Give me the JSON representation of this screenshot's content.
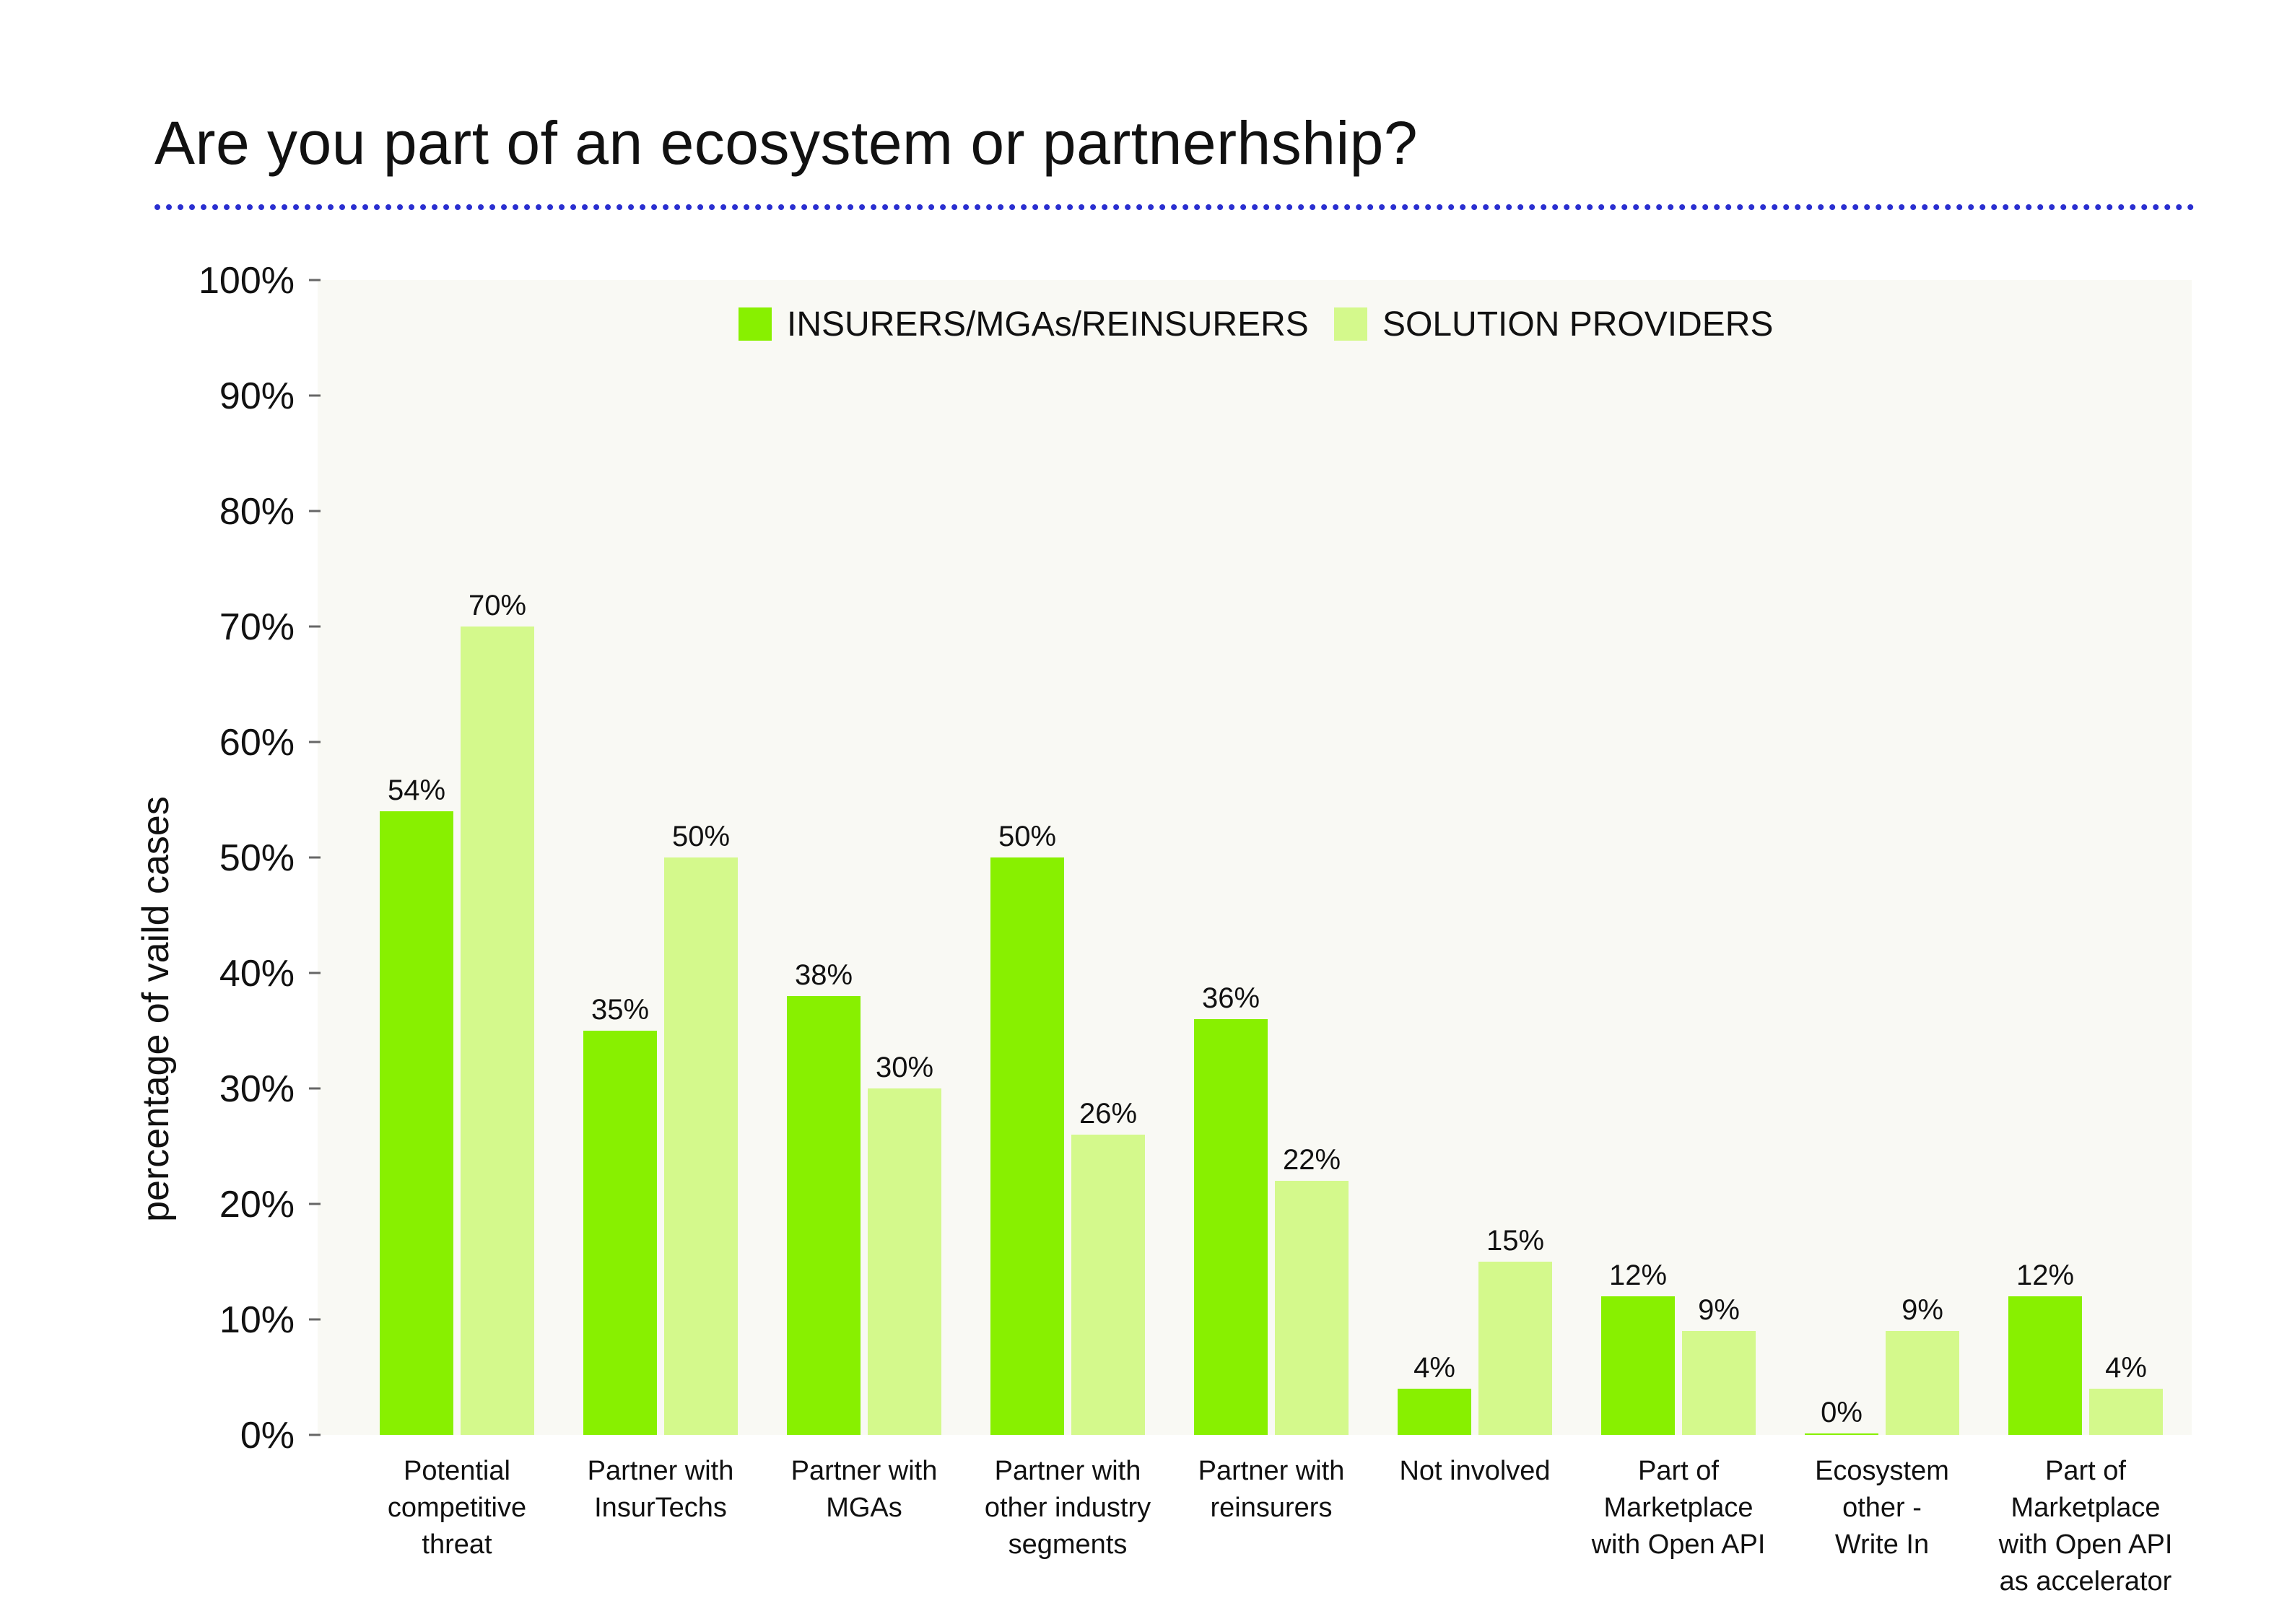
{
  "title": "Are you part of an ecosystem or partnerhship?",
  "colors": {
    "series_1": "#88f000",
    "series_2": "#d4f98c",
    "plot_bg": "#f9f9f4",
    "rule": "#2a2fd0",
    "axis": "#666666"
  },
  "chart_data": {
    "type": "bar",
    "ylabel": "percentage of vaild cases",
    "xlabel": "",
    "ylim": [
      0,
      100
    ],
    "y_ticks": [
      "0%",
      "10%",
      "20%",
      "30%",
      "40%",
      "50%",
      "60%",
      "70%",
      "80%",
      "90%",
      "100%"
    ],
    "grid": false,
    "legend_position": "top-center",
    "categories": [
      "Potential competitive threat",
      "Partner with InsurTechs",
      "Partner with MGAs",
      "Partner with other industry segments",
      "Partner with reinsurers",
      "Not involved",
      "Part of Marketplace with Open API",
      "Ecosystem other - Write In",
      "Part of Marketplace with Open API as accelerator"
    ],
    "category_lines": [
      [
        "Potential",
        "competitive",
        "threat"
      ],
      [
        "Partner with",
        "InsurTechs"
      ],
      [
        "Partner with",
        "MGAs"
      ],
      [
        "Partner with",
        "other industry",
        "segments"
      ],
      [
        "Partner with",
        "reinsurers"
      ],
      [
        "Not involved"
      ],
      [
        "Part of",
        "Marketplace",
        "with Open API"
      ],
      [
        "Ecosystem",
        "other -",
        "Write In"
      ],
      [
        "Part of",
        "Marketplace",
        "with Open API",
        "as accelerator"
      ]
    ],
    "series": [
      {
        "name": "INSURERS/MGAs/REINSURERS",
        "values": [
          54,
          35,
          38,
          50,
          36,
          4,
          12,
          0,
          12
        ],
        "labels": [
          "54%",
          "35%",
          "38%",
          "50%",
          "36%",
          "4%",
          "12%",
          "0%",
          "12%"
        ]
      },
      {
        "name": "SOLUTION PROVIDERS",
        "values": [
          70,
          50,
          30,
          26,
          22,
          15,
          9,
          9,
          4
        ],
        "labels": [
          "70%",
          "50%",
          "30%",
          "26%",
          "22%",
          "15%",
          "9%",
          "9%",
          "4%"
        ]
      }
    ]
  }
}
